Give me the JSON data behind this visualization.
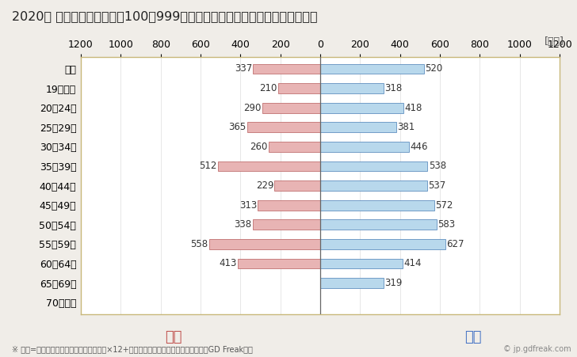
{
  "title": "2020年 民間企業（従業者数100〜999人）フルタイム労働者の男女別平均年収",
  "ylabel_unit": "[万円]",
  "categories": [
    "全体",
    "19歳以下",
    "20〜24歳",
    "25〜29歳",
    "30〜34歳",
    "35〜39歳",
    "40〜44歳",
    "45〜49歳",
    "50〜54歳",
    "55〜59歳",
    "60〜64歳",
    "65〜69歳",
    "70歳以上"
  ],
  "female_values": [
    337,
    210,
    290,
    365,
    260,
    512,
    229,
    313,
    338,
    558,
    413,
    0,
    0
  ],
  "male_values": [
    520,
    318,
    418,
    381,
    446,
    538,
    537,
    572,
    583,
    627,
    414,
    319,
    0
  ],
  "female_color": "#e8b4b4",
  "male_color": "#b8d8ec",
  "female_border_color": "#c07070",
  "male_border_color": "#6090c0",
  "female_label": "女性",
  "male_label": "男性",
  "female_label_color": "#c0504d",
  "male_label_color": "#4472c4",
  "xlim": 1200,
  "background_color": "#f0ede8",
  "plot_bg_color": "#ffffff",
  "note": "※ 年収=「きまって支給する現金給与額」×12+「年間賞与その他特別給与額」としてGD Freak推計",
  "watermark": "© jp.gdfreak.com",
  "title_fontsize": 11.5,
  "axis_fontsize": 9,
  "label_fontsize": 8.5,
  "legend_fontsize": 13,
  "note_fontsize": 7,
  "bar_height": 0.52,
  "spine_color": "#c8b87a",
  "center_line_color": "#666666",
  "grid_color": "#dddddd"
}
